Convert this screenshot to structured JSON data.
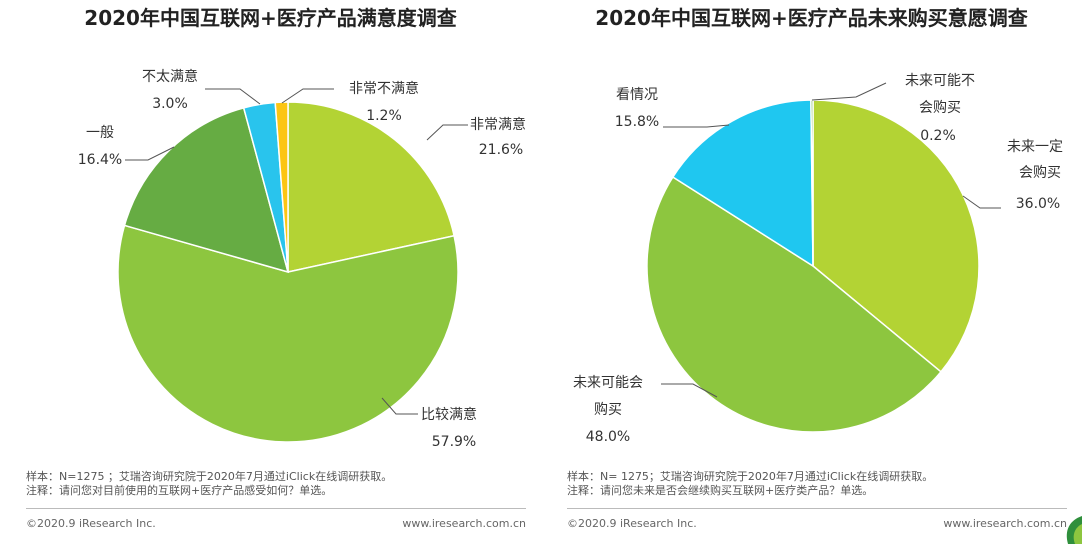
{
  "chart_data": [
    {
      "type": "pie",
      "title": "2020年中国互联网+医疗产品满意度调查",
      "slices": [
        {
          "label": "非常满意",
          "value": 21.6,
          "display": "21.6%",
          "color": "#b3d334"
        },
        {
          "label": "比较满意",
          "value": 57.9,
          "display": "57.9%",
          "color": "#8dc63f"
        },
        {
          "label": "一般",
          "value": 16.4,
          "display": "16.4%",
          "color": "#66ac43"
        },
        {
          "label": "不太满意",
          "value": 3.0,
          "display": "3.0%",
          "color": "#29c4ed"
        },
        {
          "label": "非常不满意",
          "value": 1.2,
          "display": "1.2%",
          "color": "#fcc513"
        }
      ],
      "notes": [
        "样本：N=1275 ；艾瑞咨询研究院于2020年7月通过iClick在线调研获取。",
        "注释：请问您对目前使用的互联网+医疗产品感受如何？单选。"
      ]
    },
    {
      "type": "pie",
      "title": "2020年中国互联网+医疗产品未来购买意愿调查",
      "slices": [
        {
          "label": "未来一定会购买",
          "value": 36.0,
          "display": "36.0%",
          "color": "#b3d334"
        },
        {
          "label": "未来可能会购买",
          "value": 48.0,
          "display": "48.0%",
          "color": "#8dc63f"
        },
        {
          "label": "看情况",
          "value": 15.8,
          "display": "15.8%",
          "color": "#1fc7f0"
        },
        {
          "label": "未来可能不会购买",
          "value": 0.2,
          "display": "0.2%",
          "color": "#66ac43"
        }
      ],
      "notes": [
        "样本：N= 1275；艾瑞咨询研究院于2020年7月通过iClick在线调研获取。",
        "注释：请问您未来是否会继续购买互联网+医疗类产品？单选。"
      ]
    }
  ],
  "footer": {
    "copyright": "©2020.9 iResearch Inc.",
    "website": "www.iresearch.com.cn"
  }
}
